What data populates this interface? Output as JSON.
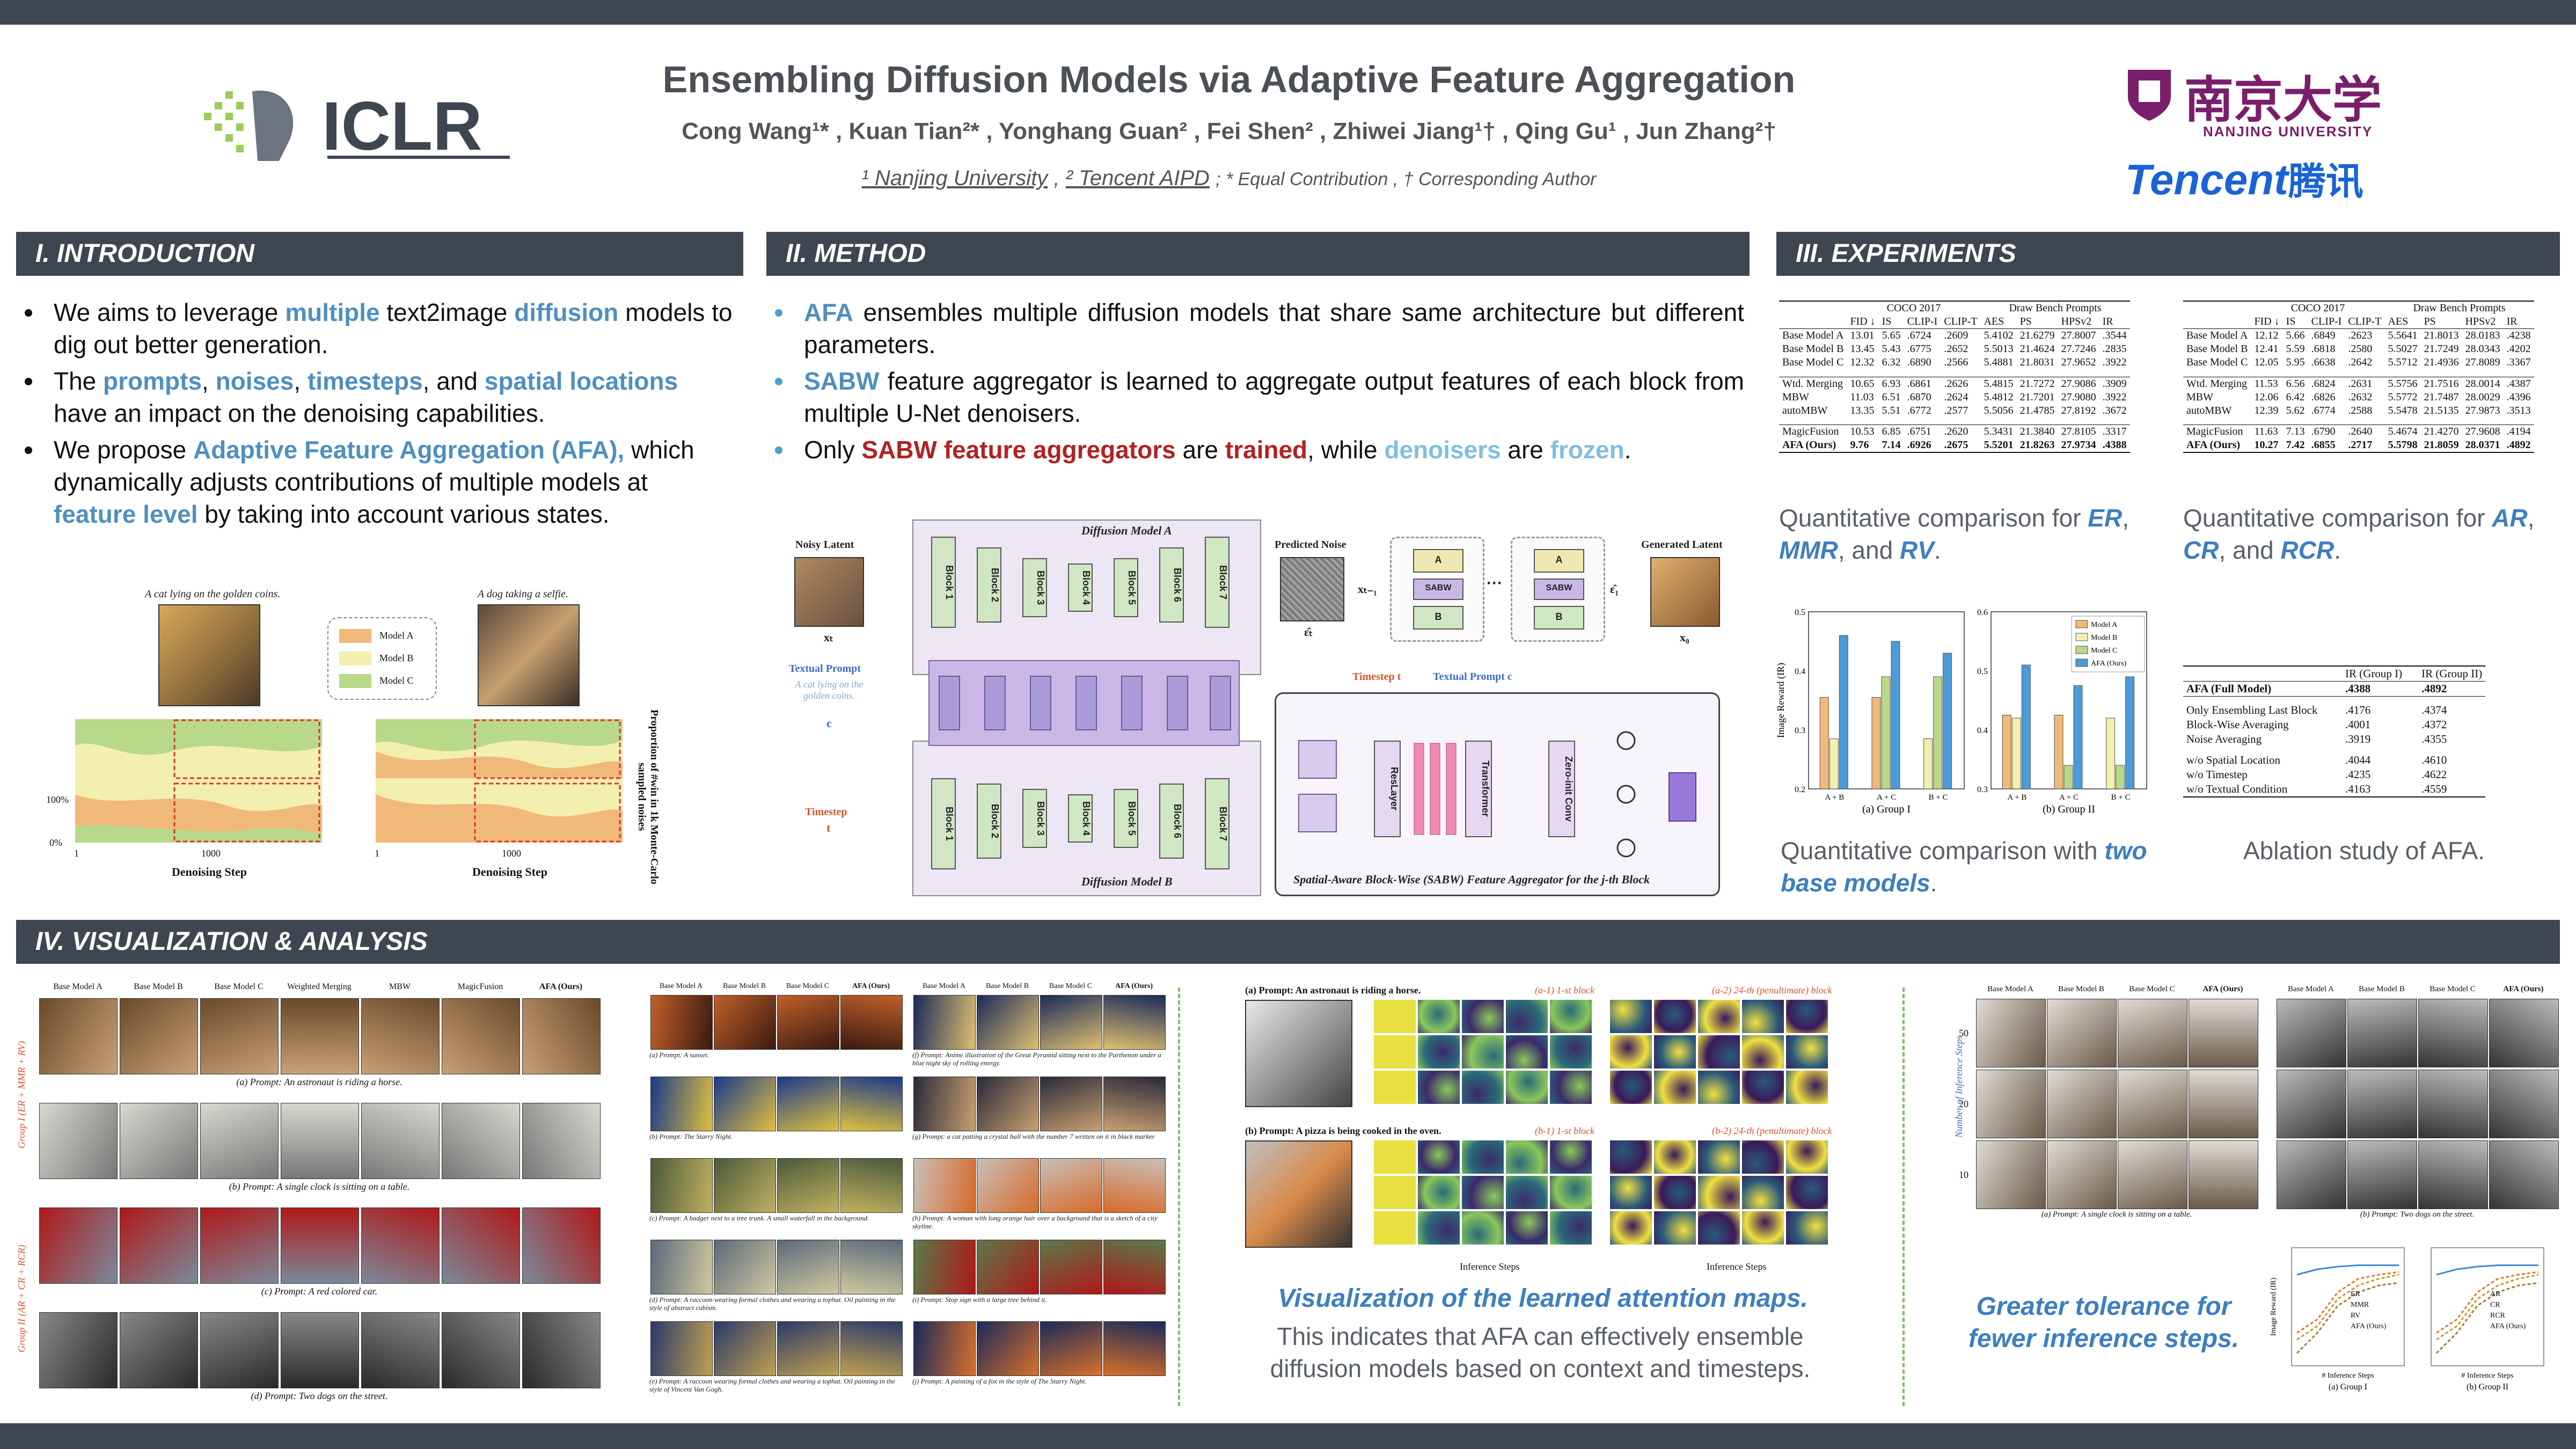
{
  "header": {
    "logo_text": "ICLR",
    "title": "Ensembling Diffusion Models via Adaptive Feature Aggregation",
    "authors": "Cong Wang¹* , Kuan Tian²* , Yonghang Guan² , Fei Shen² , Zhiwei Jiang¹† , Qing Gu¹ , Jun Zhang²†",
    "affil_1": "¹ Nanjing University",
    "affil_2": "² Tencent AIPD",
    "affil_note": "; * Equal Contribution , † Corresponding Author",
    "nju_name_cn": "南京大学",
    "nju_name_en": "NANJING UNIVERSITY",
    "tencent_en": "Tencent",
    "tencent_cn": "腾讯"
  },
  "sections": {
    "intro": "I.  INTRODUCTION",
    "method": "II.  METHOD",
    "experiments": "III.  EXPERIMENTS",
    "vis": "IV.  VISUALIZATION & ANALYSIS"
  },
  "intro": {
    "b1_pre": "We aims to leverage ",
    "b1_h1": "multiple",
    "b1_mid": " text2image ",
    "b1_h2": "diffusion",
    "b1_post": " models to dig out better generation.",
    "b2_pre": "The ",
    "b2_h1": "prompts",
    "b2_s1": ", ",
    "b2_h2": "noises",
    "b2_s2": ", ",
    "b2_h3": "timesteps",
    "b2_s3": ", and ",
    "b2_h4": "spatial locations",
    "b2_post": " have an impact on the denoising capabilities.",
    "b3_pre": "We propose ",
    "b3_h1": "Adaptive Feature Aggregation (AFA),",
    "b3_mid": " which dynamically adjusts contributions of multiple models at ",
    "b3_h2": "feature level",
    "b3_post": " by taking into account various states.",
    "fig_prompt_1": "A cat lying on the golden coins.",
    "fig_prompt_2": "A dog taking a selfie.",
    "legend": [
      "Model A",
      "Model B",
      "Model C"
    ],
    "xlabel": "Denoising Step",
    "ylabel": "Proportion of #win in 1k Monte-Carlo sampled noises",
    "ytick_hi": "100%",
    "ytick_lo": "0%",
    "xtick_1": "1",
    "xtick_2": "1000"
  },
  "method": {
    "b1_h": "AFA",
    "b1_post": " ensembles multiple diffusion models that share same architecture but different parameters.",
    "b2_h": "SABW",
    "b2_post": " feature aggregator is learned to aggregate output features of each block from multiple U-Net denoisers.",
    "b3_pre": "Only ",
    "b3_h1": "SABW feature aggregators",
    "b3_mid": " are ",
    "b3_h2": "trained",
    "b3_mid2": ", while ",
    "b3_h3": "denoisers",
    "b3_mid3": " are ",
    "b3_h4": "frozen",
    "b3_post": ".",
    "noisy_latent": "Noisy Latent",
    "x_t": "xₜ",
    "textual_prompt": "Textual Prompt",
    "prompt_example": "A cat lying on the golden coins.",
    "c": "c",
    "timestep": "Timestep",
    "t": "t",
    "model_a": "Diffusion Model A",
    "model_b": "Diffusion Model B",
    "blocks_top": [
      "Block 1",
      "Block 2",
      "Block 3",
      "Block 4",
      "Block 5",
      "Block 6",
      "Block 7"
    ],
    "predicted_noise": "Predicted Noise",
    "eps_t": "ε̂ₜ",
    "x_t1": "xₜ₋₁",
    "sabw": "SABW",
    "eps_1": "ε̂₁",
    "generated": "Generated Latent",
    "x_0": "x₀",
    "agg_timestep": "Timestep t",
    "agg_prompt": "Textual Prompt c",
    "reslayer": "ResLayer",
    "transformer": "Transformer",
    "zeroconv": "Zero-init Conv",
    "agg_caption": "Spatial-Aware Block-Wise (SABW) Feature Aggregator for the j-th Block",
    "ab_a": "A",
    "ab_b": "B"
  },
  "experiments": {
    "table1": {
      "groups": [
        "COCO 2017",
        "Draw Bench Prompts"
      ],
      "cols": [
        "FID ↓",
        "IS",
        "CLIP-I",
        "CLIP-T",
        "AES",
        "PS",
        "HPSv2",
        "IR"
      ],
      "rows": [
        [
          "Base Model A",
          "13.01",
          "5.65",
          ".6724",
          ".2609",
          "5.4102",
          "21.6279",
          "27.8007",
          ".3544"
        ],
        [
          "Base Model B",
          "13.45",
          "5.43",
          ".6775",
          ".2652",
          "5.5013",
          "21.4624",
          "27.7246",
          ".2835"
        ],
        [
          "Base Model C",
          "12.32",
          "6.32",
          ".6890",
          ".2566",
          "5.4881",
          "21.8031",
          "27.9652",
          ".3922"
        ],
        [
          "Wtd. Merging",
          "10.65",
          "6.93",
          ".6861",
          ".2626",
          "5.4815",
          "21.7272",
          "27.9086",
          ".3909"
        ],
        [
          "MBW",
          "11.03",
          "6.51",
          ".6870",
          ".2624",
          "5.4812",
          "21.7201",
          "27.9080",
          ".3922"
        ],
        [
          "autoMBW",
          "13.35",
          "5.51",
          ".6772",
          ".2577",
          "5.5056",
          "21.4785",
          "27.8192",
          ".3672"
        ],
        [
          "MagicFusion",
          "10.53",
          "6.85",
          ".6751",
          ".2620",
          "5.3431",
          "21.3840",
          "27.8105",
          ".3317"
        ],
        [
          "AFA (Ours)",
          "9.76",
          "7.14",
          ".6926",
          ".2675",
          "5.5201",
          "21.8263",
          "27.9734",
          ".4388"
        ]
      ],
      "caption_pre": "Quantitative comparison for ",
      "caption_h1": "ER",
      "caption_mid": ", ",
      "caption_h2": "MMR",
      "caption_mid2": ", and ",
      "caption_h3": "RV",
      "caption_post": "."
    },
    "table2": {
      "groups": [
        "COCO 2017",
        "Draw Bench Prompts"
      ],
      "cols": [
        "FID ↓",
        "IS",
        "CLIP-I",
        "CLIP-T",
        "AES",
        "PS",
        "HPSv2",
        "IR"
      ],
      "rows": [
        [
          "Base Model A",
          "12.12",
          "5.66",
          ".6849",
          ".2623",
          "5.5641",
          "21.8013",
          "28.0183",
          ".4238"
        ],
        [
          "Base Model B",
          "12.41",
          "5.59",
          ".6818",
          ".2580",
          "5.5027",
          "21.7249",
          "28.0343",
          ".4202"
        ],
        [
          "Base Model C",
          "12.05",
          "5.95",
          ".6638",
          ".2642",
          "5.5712",
          "21.4936",
          "27.8089",
          ".3367"
        ],
        [
          "Wtd. Merging",
          "11.53",
          "6.56",
          ".6824",
          ".2631",
          "5.5756",
          "21.7516",
          "28.0014",
          ".4387"
        ],
        [
          "MBW",
          "12.06",
          "6.42",
          ".6826",
          ".2632",
          "5.5772",
          "21.7487",
          "28.0029",
          ".4396"
        ],
        [
          "autoMBW",
          "12.39",
          "5.62",
          ".6774",
          ".2588",
          "5.5478",
          "21.5135",
          "27.9873",
          ".3513"
        ],
        [
          "MagicFusion",
          "11.63",
          "7.13",
          ".6790",
          ".2640",
          "5.4674",
          "21.4270",
          "27.9608",
          ".4194"
        ],
        [
          "AFA (Ours)",
          "10.27",
          "7.42",
          ".6855",
          ".2717",
          "5.5798",
          "21.8059",
          "28.0371",
          ".4892"
        ]
      ],
      "caption_pre": "Quantitative comparison for ",
      "caption_h1": "AR",
      "caption_mid": ", ",
      "caption_h2": "CR",
      "caption_mid2": ", and ",
      "caption_h3": "RCR",
      "caption_post": "."
    },
    "bar_caption_pre": "Quantitative comparison with ",
    "bar_caption_h": "two base models",
    "bar_caption_post": ".",
    "ablation": {
      "cols": [
        "IR (Group I)",
        "IR (Group II)"
      ],
      "rows": [
        [
          "AFA (Full Model)",
          ".4388",
          ".4892"
        ],
        [
          "Only Ensembling Last Block",
          ".4176",
          ".4374"
        ],
        [
          "Block-Wise Averaging",
          ".4001",
          ".4372"
        ],
        [
          "Noise Averaging",
          ".3919",
          ".4355"
        ],
        [
          "w/o Spatial Location",
          ".4044",
          ".4610"
        ],
        [
          "w/o Timestep",
          ".4235",
          ".4622"
        ],
        [
          "w/o Textual Condition",
          ".4163",
          ".4559"
        ]
      ],
      "caption": "Ablation study of AFA."
    }
  },
  "chart_data": [
    {
      "type": "bar",
      "title": "(a) Group I",
      "ylabel": "Image Reward (IR)",
      "categories": [
        "A + B",
        "A + C",
        "B + C"
      ],
      "series": [
        {
          "name": "Model A",
          "values": [
            0.355,
            0.355,
            null
          ]
        },
        {
          "name": "Model B",
          "values": [
            0.285,
            null,
            0.285
          ]
        },
        {
          "name": "Model C",
          "values": [
            null,
            0.39,
            0.39
          ]
        },
        {
          "name": "AFA (Ours)",
          "values": [
            0.46,
            0.45,
            0.43
          ]
        }
      ],
      "ylim": [
        0.2,
        0.5
      ],
      "yticks": [
        "0.2",
        "0.3",
        "0.4",
        "0.5"
      ],
      "colors": [
        "#f0b97a",
        "#f3efae",
        "#b9d98a",
        "#4a9bd8"
      ]
    },
    {
      "type": "bar",
      "title": "(b) Group II",
      "categories": [
        "A + B",
        "A + C",
        "B + C"
      ],
      "series": [
        {
          "name": "Model A",
          "values": [
            0.425,
            0.425,
            null
          ]
        },
        {
          "name": "Model B",
          "values": [
            0.42,
            null,
            0.42
          ]
        },
        {
          "name": "Model C",
          "values": [
            null,
            0.34,
            0.34
          ]
        },
        {
          "name": "AFA (Ours)",
          "values": [
            0.51,
            0.475,
            0.49
          ]
        }
      ],
      "ylim": [
        0.3,
        0.6
      ],
      "yticks": [
        "0.3",
        "0.4",
        "0.5",
        "0.6"
      ],
      "legend": [
        "Model A",
        "Model B",
        "Model C",
        "AFA (Ours)"
      ],
      "colors": [
        "#f0b97a",
        "#f3efae",
        "#b9d98a",
        "#4a9bd8"
      ]
    }
  ],
  "vis": {
    "cols1": [
      "Base Model A",
      "Base Model B",
      "Base Model C",
      "Weighted Merging",
      "MBW",
      "MagicFusion",
      "AFA (Ours)"
    ],
    "caps1": [
      "(a) Prompt: An astronaut is riding a horse.",
      "(b) Prompt: A single clock is sitting on a table.",
      "(c) Prompt: A red colored car.",
      "(d) Prompt: Two dogs on the street."
    ],
    "group1": "Group I (ER + MMR + RV)",
    "group2": "Group II (AR + CR + RCR)",
    "cols2": [
      "Base Model A",
      "Base Model B",
      "Base Model C",
      "AFA (Ours)"
    ],
    "caps2_left": [
      "(a) Prompt: A sunset.",
      "(b) Prompt: The Starry Night.",
      "(c) Prompt: A badger next to a tree trunk. A small waterfall in the background.",
      "(d) Prompt: A raccoon wearing formal clothes and wearing a tophat. Oil painting in the style of abstract cubism.",
      "(e) Prompt: A raccoon wearing formal clothes and wearing a tophat. Oil painting in the style of Vincent Van Gogh."
    ],
    "caps2_right": [
      "(f) Prompt: Anime illustration of the Great Pyramid sitting next to the Parthenon under a blue night sky of rolling energy.",
      "(g) Prompt: a cat patting a crystal ball with the number 7 written on it in black marker",
      "(h) Prompt: A woman with long orange hair over a background that is a sketch of a city skyline.",
      "(i) Prompt: Stop sign with a large tree behind it.",
      "(j) Prompt: A painting of a fox in the style of The Starry Night."
    ],
    "attn_prompt_a": "(a) Prompt: An astronaut is riding a horse.",
    "attn_prompt_b": "(b) Prompt: A pizza is being cooked in the oven.",
    "attn_a1": "(a-1) 1-st block",
    "attn_a2": "(a-2) 24-th (penultimate) block",
    "attn_b1": "(b-1) 1-st block",
    "attn_b2": "(b-2) 24-th (penultimate) block",
    "attn_xlabel": "Inference Steps",
    "attn_caption": "Visualization of the learned attention maps.",
    "attn_desc": "This indicates that AFA can effectively ensemble diffusion models based on context and timesteps.",
    "inf_ylabel": "Number of Inference Steps",
    "inf_rows": [
      "50",
      "20",
      "10"
    ],
    "inf_caption_a": "(a) Prompt: A single clock is sitting on a table.",
    "inf_caption_b": "(b) Prompt: Two dogs on the street.",
    "inf_tol": "Greater tolerance for fewer inference steps.",
    "line_xlabel": "# Inference Steps",
    "line_ylabel": "Image Reward (IR)",
    "line_a": "(a) Group I",
    "line_b": "(b) Group II",
    "legend_a": [
      "ER",
      "MMR",
      "RV",
      "AFA (Ours)"
    ],
    "legend_b": [
      "AR",
      "CR",
      "RCR",
      "AFA (Ours)"
    ]
  }
}
